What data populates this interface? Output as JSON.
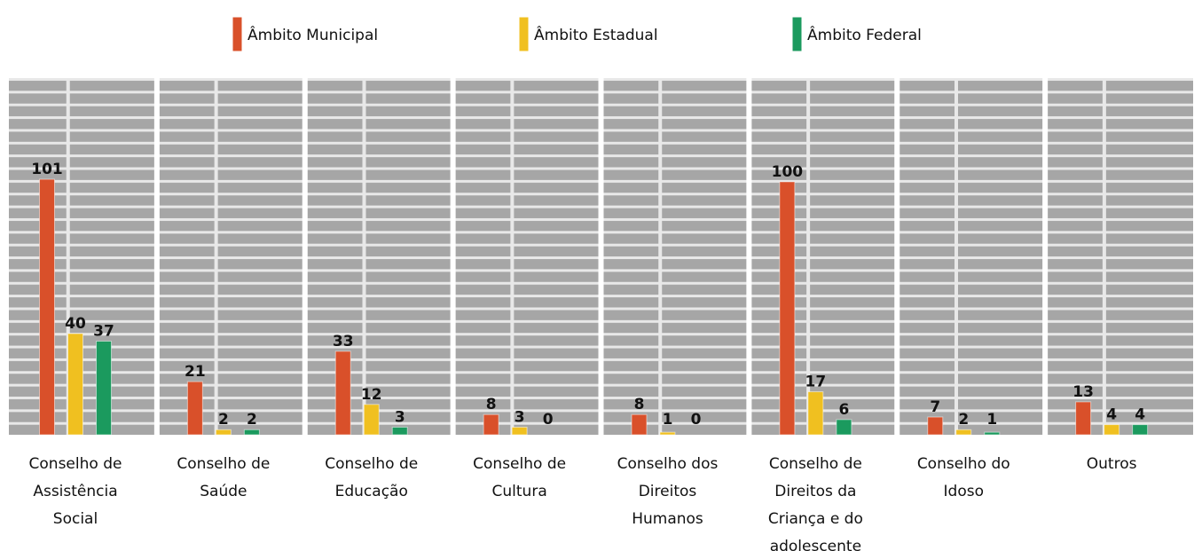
{
  "chart_data": {
    "type": "bar",
    "categories": [
      "Conselho de Assistência Social",
      "Conselho de Saúde",
      "Conselho de Educação",
      "Conselho de Cultura",
      "Conselho dos Direitos Humanos",
      "Conselho de Direitos da Criança e do adolescente",
      "Conselho do Idoso",
      "Outros"
    ],
    "series": [
      {
        "name": "Âmbito Municipal",
        "color": "#d9502a",
        "values": [
          101,
          21,
          33,
          8,
          8,
          100,
          7,
          13
        ]
      },
      {
        "name": "Âmbito Estadual",
        "color": "#f0c020",
        "values": [
          40,
          2,
          12,
          3,
          1,
          17,
          2,
          4
        ]
      },
      {
        "name": "Âmbito Federal",
        "color": "#1b9a5e",
        "values": [
          37,
          2,
          3,
          0,
          0,
          6,
          1,
          4
        ]
      }
    ],
    "ylim": [
      0,
      141
    ]
  }
}
